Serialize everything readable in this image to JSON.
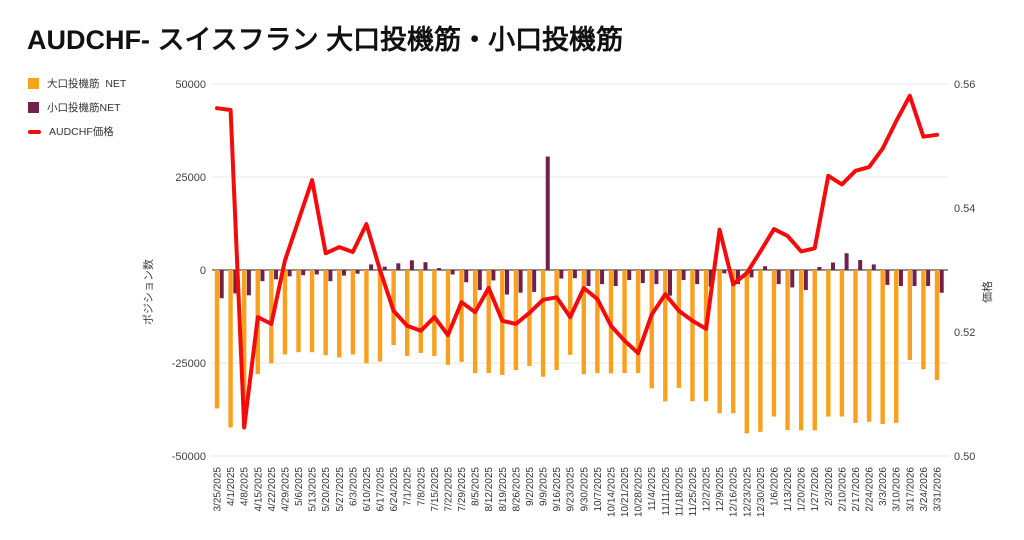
{
  "title": "AUDCHF- スイスフラン 大口投機筋・小口投機筋",
  "legend": [
    {
      "label": "大口投機筋  NET",
      "color": "#F9A11E",
      "type": "square"
    },
    {
      "label": "小口投機筋NET",
      "color": "#71204B",
      "type": "square"
    },
    {
      "label": "AUDCHF価格",
      "color": "#F40B0C",
      "type": "line"
    }
  ],
  "chart_data": {
    "type": "bar+line combo",
    "categories": [
      "3/25/2025",
      "4/1/2025",
      "4/8/2025",
      "4/15/2025",
      "4/22/2025",
      "4/29/2025",
      "5/6/2025",
      "5/13/2025",
      "5/20/2025",
      "5/27/2025",
      "6/3/2025",
      "6/10/2025",
      "6/17/2025",
      "6/24/2025",
      "7/1/2025",
      "7/8/2025",
      "7/15/2025",
      "7/22/2025",
      "7/29/2025",
      "8/5/2025",
      "8/12/2025",
      "8/19/2025",
      "8/26/2025",
      "9/2/2025",
      "9/9/2025",
      "9/16/2025",
      "9/23/2025",
      "9/30/2025",
      "10/7/2025",
      "10/14/2025",
      "10/21/2025",
      "10/28/2025",
      "11/4/2025",
      "11/11/2025",
      "11/18/2025",
      "11/25/2025",
      "12/2/2025",
      "12/9/2025",
      "12/16/2025",
      "12/23/2025",
      "12/30/2025",
      "1/6/2026",
      "1/13/2026",
      "1/20/2026",
      "1/27/2026",
      "2/3/2026",
      "2/10/2026",
      "2/17/2026",
      "2/24/2026",
      "3/3/2026",
      "3/10/2026",
      "3/17/2026",
      "3/24/2026",
      "3/31/2026"
    ],
    "series": [
      {
        "name": "大口投機筋  NET",
        "type": "bar",
        "axis": "left",
        "color": "#F9A11E",
        "values": [
          -37200,
          -42300,
          -42300,
          -28000,
          -25100,
          -22700,
          -22100,
          -22100,
          -22900,
          -23500,
          -22700,
          -25100,
          -24600,
          -20200,
          -23100,
          -22300,
          -23100,
          -25500,
          -24700,
          -27700,
          -27700,
          -28200,
          -26900,
          -25800,
          -28700,
          -26900,
          -22800,
          -28000,
          -27700,
          -27800,
          -27700,
          -27700,
          -31800,
          -35300,
          -31700,
          -35300,
          -35300,
          -38500,
          -38500,
          -43900,
          -43500,
          -39400,
          -43000,
          -43100,
          -43100,
          -39400,
          -39400,
          -41100,
          -40800,
          -41400,
          -41100,
          -24200,
          -26700,
          -29600
        ]
      },
      {
        "name": "小口投機筋NET",
        "type": "bar",
        "axis": "left",
        "color": "#71204B",
        "values": [
          -7600,
          -6300,
          -6800,
          -3000,
          -2500,
          -1700,
          -1400,
          -1200,
          -3000,
          -1500,
          -1000,
          1500,
          900,
          1800,
          2600,
          2100,
          500,
          -1200,
          -3300,
          -5400,
          -2800,
          -6600,
          -6100,
          -5900,
          30500,
          -2300,
          -2200,
          -4300,
          -3800,
          -4300,
          -2700,
          -3500,
          -3800,
          -6900,
          -2700,
          -3800,
          -4500,
          -900,
          -3800,
          -2000,
          1000,
          -3800,
          -4700,
          -5400,
          800,
          2000,
          4500,
          2700,
          1500,
          -4000,
          -4300,
          -4300,
          -4300,
          -6100
        ]
      },
      {
        "name": "AUDCHF価格",
        "type": "line",
        "axis": "right",
        "color": "#F40B0C",
        "values": [
          0.5561,
          0.5558,
          0.5046,
          0.5224,
          0.5213,
          0.5315,
          0.538,
          0.5445,
          0.5327,
          0.5337,
          0.5329,
          0.5374,
          0.53,
          0.5234,
          0.521,
          0.5202,
          0.5224,
          0.5195,
          0.5248,
          0.5232,
          0.5271,
          0.5218,
          0.5213,
          0.5231,
          0.5252,
          0.5256,
          0.5224,
          0.5271,
          0.5253,
          0.521,
          0.5186,
          0.5166,
          0.5228,
          0.5261,
          0.5234,
          0.5218,
          0.5205,
          0.5365,
          0.5277,
          0.5295,
          0.533,
          0.5366,
          0.5355,
          0.533,
          0.5335,
          0.5452,
          0.5438,
          0.546,
          0.5466,
          0.5496,
          0.554,
          0.5581,
          0.5515,
          0.5518
        ]
      }
    ],
    "left_axis": {
      "label": "ポジション数",
      "tick_labels": [
        "50000",
        "25000",
        "0",
        "-25000",
        "-50000"
      ],
      "min": -50000,
      "max": 50000
    },
    "right_axis": {
      "label": "価格",
      "tick_labels": [
        "0.56",
        "0.54",
        "0.52",
        "0.50"
      ],
      "min": 0.5,
      "max": 0.56
    },
    "grid": true,
    "legend_position": "top-left",
    "colors": {
      "grid": "#e7e7e7",
      "zero_line": "#8f8f8f",
      "tick_text": "#404040",
      "date_text": "#333333"
    }
  }
}
